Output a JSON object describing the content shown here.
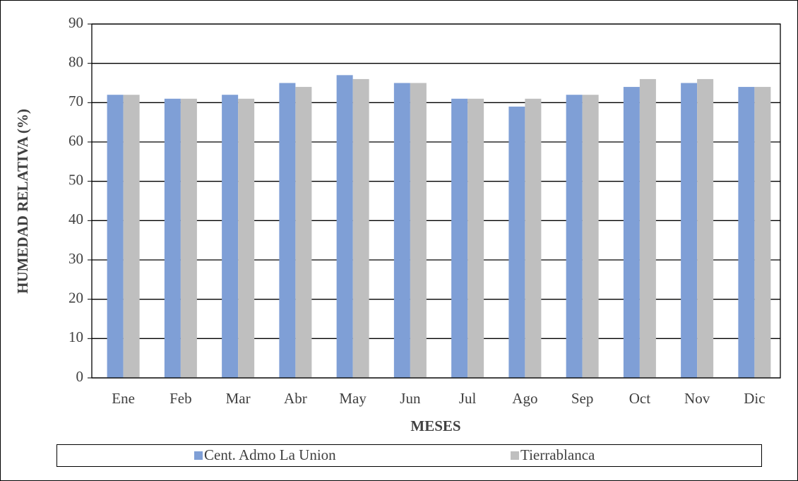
{
  "chart_data": {
    "type": "bar",
    "x_label": "MESES",
    "y_label": "HUMEDAD RELATIVA (%)",
    "categories": [
      "Ene",
      "Feb",
      "Mar",
      "Abr",
      "May",
      "Jun",
      "Jul",
      "Ago",
      "Sep",
      "Oct",
      "Nov",
      "Dic"
    ],
    "series": [
      {
        "name": "Cent. Admo La Union",
        "color": "#7f9fd6",
        "values": [
          72,
          71,
          72,
          75,
          77,
          75,
          71,
          69,
          72,
          74,
          75,
          74
        ]
      },
      {
        "name": "Tierrablanca",
        "color": "#bfbfbf",
        "values": [
          72,
          71,
          71,
          74,
          76,
          75,
          71,
          71,
          72,
          76,
          76,
          74
        ]
      }
    ],
    "ylim": [
      0,
      90
    ],
    "yticks": [
      0,
      10,
      20,
      30,
      40,
      50,
      60,
      70,
      80,
      90
    ],
    "grid": true,
    "legend": "bottom"
  }
}
